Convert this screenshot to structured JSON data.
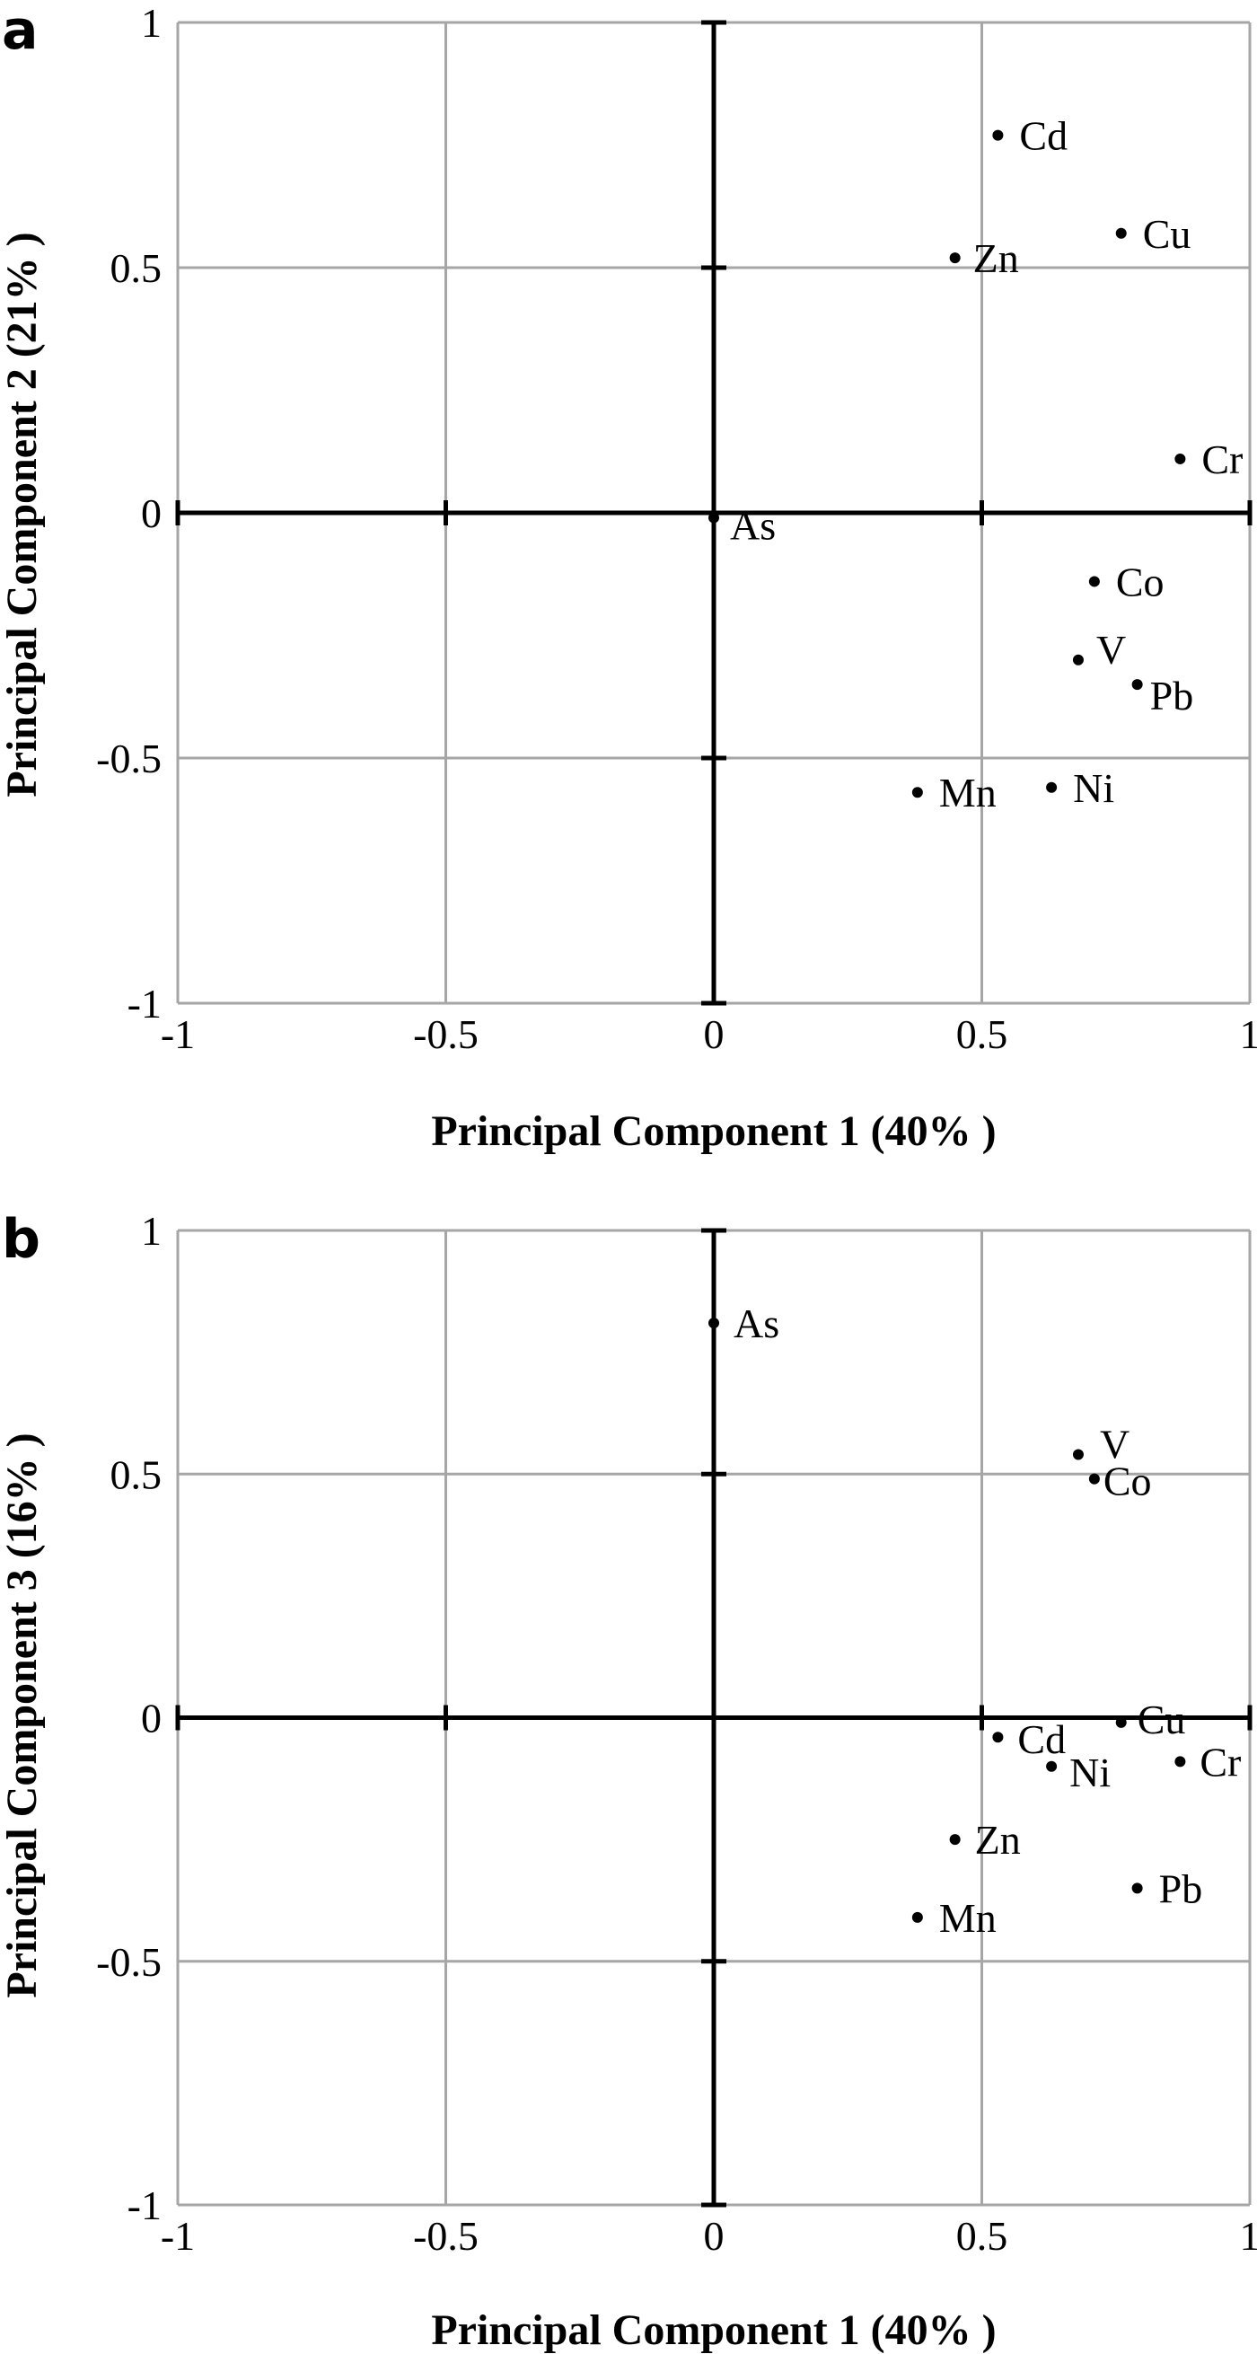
{
  "chart_data": [
    {
      "type": "scatter",
      "panel": "a",
      "xlabel": "Principal Component 1 (40% )",
      "ylabel": "Principal Component 2 (21% )",
      "xlim": [
        -1,
        1
      ],
      "ylim": [
        -1,
        1
      ],
      "xticks": [
        "-1",
        "-0.5",
        "0",
        "0.5",
        "1"
      ],
      "yticks": [
        "1",
        "0.5",
        "0",
        "-0.5",
        "-1"
      ],
      "grid": true,
      "points": [
        {
          "label": "Cd",
          "x": 0.53,
          "y": 0.77
        },
        {
          "label": "Cu",
          "x": 0.76,
          "y": 0.57
        },
        {
          "label": "Zn",
          "x": 0.45,
          "y": 0.52
        },
        {
          "label": "Cr",
          "x": 0.87,
          "y": 0.11
        },
        {
          "label": "As",
          "x": 0.0,
          "y": -0.01
        },
        {
          "label": "Co",
          "x": 0.71,
          "y": -0.14
        },
        {
          "label": "V",
          "x": 0.68,
          "y": -0.3
        },
        {
          "label": "Pb",
          "x": 0.79,
          "y": -0.35
        },
        {
          "label": "Mn",
          "x": 0.38,
          "y": -0.57
        },
        {
          "label": "Ni",
          "x": 0.63,
          "y": -0.56
        }
      ]
    },
    {
      "type": "scatter",
      "panel": "b",
      "xlabel": "Principal Component 1 (40% )",
      "ylabel": "Principal Component 3 (16% )",
      "xlim": [
        -1,
        1
      ],
      "ylim": [
        -1,
        1
      ],
      "xticks": [
        "-1",
        "-0.5",
        "0",
        "0.5",
        "1"
      ],
      "yticks": [
        "1",
        "0.5",
        "0",
        "-0.5",
        "-1"
      ],
      "grid": true,
      "points": [
        {
          "label": "As",
          "x": 0.0,
          "y": 0.81
        },
        {
          "label": "V",
          "x": 0.68,
          "y": 0.54
        },
        {
          "label": "Co",
          "x": 0.71,
          "y": 0.49
        },
        {
          "label": "Cu",
          "x": 0.76,
          "y": -0.01
        },
        {
          "label": "Cd",
          "x": 0.53,
          "y": -0.04
        },
        {
          "label": "Ni",
          "x": 0.63,
          "y": -0.1
        },
        {
          "label": "Cr",
          "x": 0.87,
          "y": -0.09
        },
        {
          "label": "Zn",
          "x": 0.45,
          "y": -0.25
        },
        {
          "label": "Pb",
          "x": 0.79,
          "y": -0.35
        },
        {
          "label": "Mn",
          "x": 0.38,
          "y": -0.41
        }
      ]
    }
  ],
  "colors": {
    "grid": "#a6a6a6",
    "axis": "#000000",
    "point": "#000000"
  }
}
